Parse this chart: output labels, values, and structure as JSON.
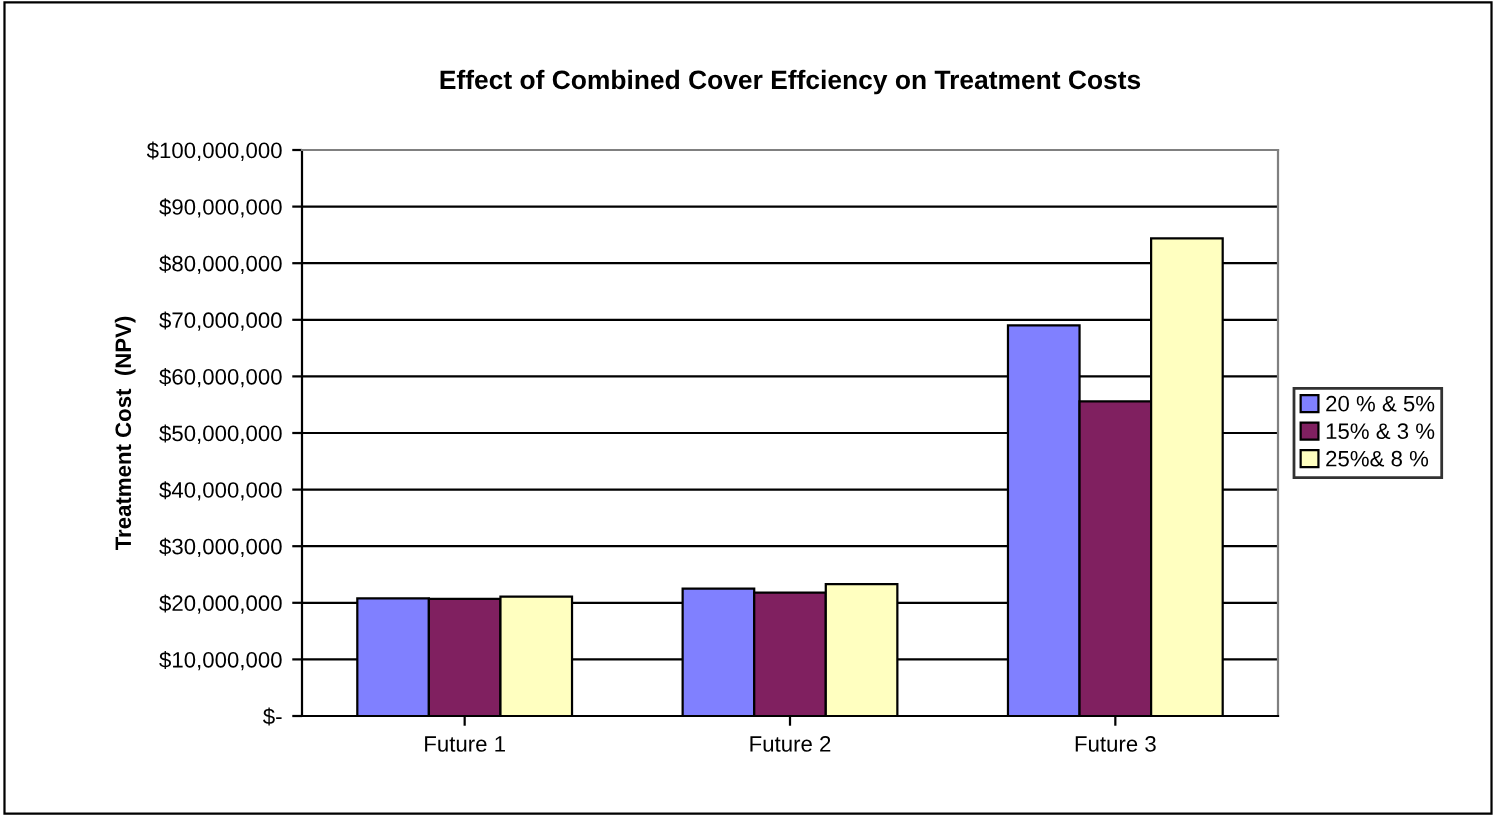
{
  "chart_data": {
    "type": "bar",
    "title": "Effect of Combined Cover Effciency on Treatment Costs",
    "ylabel": "Treatment Cost  (NPV)",
    "categories": [
      "Future 1",
      "Future 2",
      "Future 3"
    ],
    "series": [
      {
        "name": "20 % & 5%",
        "color": "#8080ff",
        "values": [
          20800000,
          22500000,
          69000000
        ]
      },
      {
        "name": "15% & 3 %",
        "color": "#802060",
        "values": [
          20700000,
          21800000,
          55600000
        ]
      },
      {
        "name": "25%& 8 %",
        "color": "#ffffc0",
        "values": [
          21100000,
          23300000,
          84400000
        ]
      }
    ],
    "ylim": [
      0,
      100000000
    ],
    "yticks": [
      {
        "value": 0,
        "label": "$-"
      },
      {
        "value": 10000000,
        "label": "$10,000,000"
      },
      {
        "value": 20000000,
        "label": "$20,000,000"
      },
      {
        "value": 30000000,
        "label": "$30,000,000"
      },
      {
        "value": 40000000,
        "label": "$40,000,000"
      },
      {
        "value": 50000000,
        "label": "$50,000,000"
      },
      {
        "value": 60000000,
        "label": "$60,000,000"
      },
      {
        "value": 70000000,
        "label": "$70,000,000"
      },
      {
        "value": 80000000,
        "label": "$80,000,000"
      },
      {
        "value": 90000000,
        "label": "$90,000,000"
      },
      {
        "value": 100000000,
        "label": "$100,000,000"
      }
    ],
    "grid": "y",
    "legend": "right"
  }
}
